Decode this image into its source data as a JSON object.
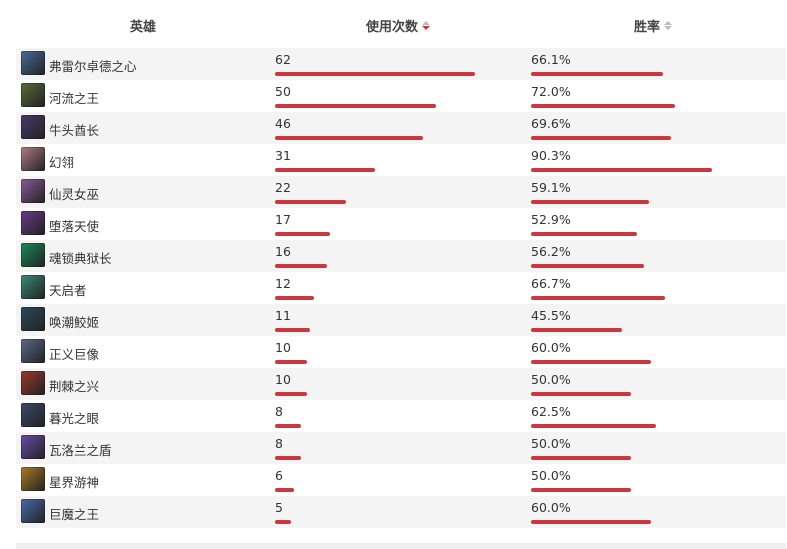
{
  "header": {
    "hero_label": "英雄",
    "uses_label": "使用次数",
    "winrate_label": "胜率"
  },
  "colors": {
    "bar": "#c9373f",
    "sort_active": "#c9373f"
  },
  "max_uses": 62,
  "rows": [
    {
      "name": "弗雷尔卓德之心",
      "uses": "62",
      "winrate": "66.1%",
      "uses_val": 62,
      "win_val": 66.1,
      "avatar_color": "#4a6a9a"
    },
    {
      "name": "河流之王",
      "uses": "50",
      "winrate": "72.0%",
      "uses_val": 50,
      "win_val": 72.0,
      "avatar_color": "#5a6a3a"
    },
    {
      "name": "牛头酋长",
      "uses": "46",
      "winrate": "69.6%",
      "uses_val": 46,
      "win_val": 69.6,
      "avatar_color": "#4a3a6a"
    },
    {
      "name": "幻翎",
      "uses": "31",
      "winrate": "90.3%",
      "uses_val": 31,
      "win_val": 90.3,
      "avatar_color": "#b07a8a"
    },
    {
      "name": "仙灵女巫",
      "uses": "22",
      "winrate": "59.1%",
      "uses_val": 22,
      "win_val": 59.1,
      "avatar_color": "#8a5a9a"
    },
    {
      "name": "堕落天使",
      "uses": "17",
      "winrate": "52.9%",
      "uses_val": 17,
      "win_val": 52.9,
      "avatar_color": "#6a3a8a"
    },
    {
      "name": "魂锁典狱长",
      "uses": "16",
      "winrate": "56.2%",
      "uses_val": 16,
      "win_val": 56.2,
      "avatar_color": "#1a8a5a"
    },
    {
      "name": "天启者",
      "uses": "12",
      "winrate": "66.7%",
      "uses_val": 12,
      "win_val": 66.7,
      "avatar_color": "#3a8a7a"
    },
    {
      "name": "唤潮鲛姬",
      "uses": "11",
      "winrate": "45.5%",
      "uses_val": 11,
      "win_val": 45.5,
      "avatar_color": "#2a4a5a"
    },
    {
      "name": "正义巨像",
      "uses": "10",
      "winrate": "60.0%",
      "uses_val": 10,
      "win_val": 60.0,
      "avatar_color": "#5a6a8a"
    },
    {
      "name": "荆棘之兴",
      "uses": "10",
      "winrate": "50.0%",
      "uses_val": 10,
      "win_val": 50.0,
      "avatar_color": "#9a3a2a"
    },
    {
      "name": "暮光之眼",
      "uses": "8",
      "winrate": "62.5%",
      "uses_val": 8,
      "win_val": 62.5,
      "avatar_color": "#3a4a6a"
    },
    {
      "name": "瓦洛兰之盾",
      "uses": "8",
      "winrate": "50.0%",
      "uses_val": 8,
      "win_val": 50.0,
      "avatar_color": "#6a4aaa"
    },
    {
      "name": "星界游神",
      "uses": "6",
      "winrate": "50.0%",
      "uses_val": 6,
      "win_val": 50.0,
      "avatar_color": "#aa7a2a"
    },
    {
      "name": "巨魔之王",
      "uses": "5",
      "winrate": "60.0%",
      "uses_val": 5,
      "win_val": 60.0,
      "avatar_color": "#4a6aaa"
    }
  ]
}
